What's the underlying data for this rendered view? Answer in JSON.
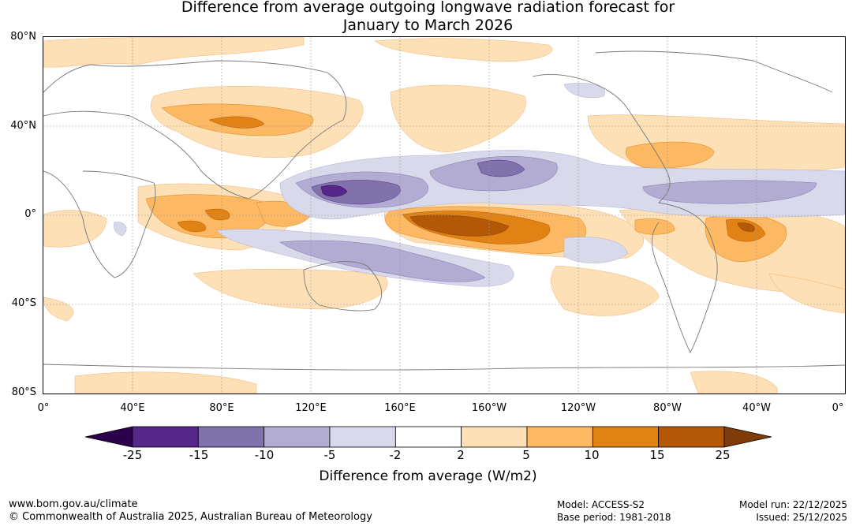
{
  "title": {
    "line1": "Difference from average outgoing longwave radiation forecast for",
    "line2": "January to March 2026"
  },
  "map": {
    "lat_labels": [
      "80°N",
      "40°N",
      "0°",
      "40°S",
      "80°S"
    ],
    "lon_labels": [
      "0°",
      "40°E",
      "80°E",
      "120°E",
      "160°E",
      "160°W",
      "120°W",
      "80°W",
      "40°W",
      "0°"
    ]
  },
  "colorbar": {
    "title": "Difference from average (W/m2)",
    "tick_labels": [
      "-25",
      "-15",
      "-10",
      "-5",
      "-2",
      "2",
      "5",
      "10",
      "15",
      "25"
    ],
    "colors": [
      "#2d004b",
      "#542788",
      "#8073ac",
      "#b2abd2",
      "#d8daeb",
      "#ffffff",
      "#fee0b6",
      "#fdb863",
      "#e08214",
      "#b35806",
      "#7f3b08"
    ]
  },
  "footer": {
    "website": "www.bom.gov.au/climate",
    "copyright": "© Commonwealth of Australia 2025, Australian Bureau of Meteorology",
    "model": "Model: ACCESS-S2",
    "base_period": "Base period: 1981-2018",
    "model_run": "Model run: 22/12/2025",
    "issued": "Issued: 25/12/2025"
  }
}
